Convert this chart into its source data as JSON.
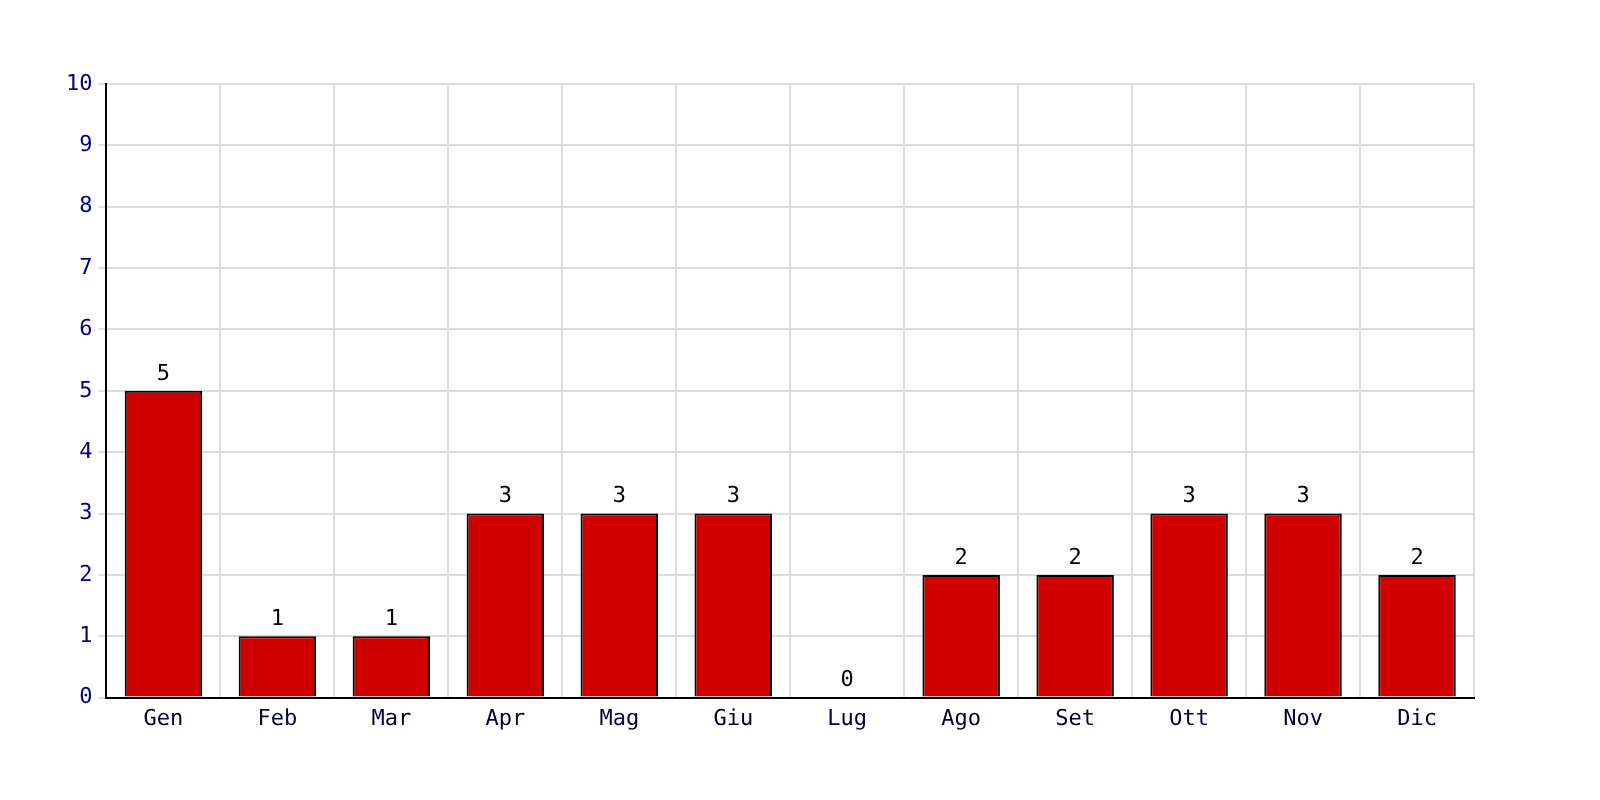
{
  "chart_data": {
    "type": "bar",
    "categories": [
      "Gen",
      "Feb",
      "Mar",
      "Apr",
      "Mag",
      "Giu",
      "Lug",
      "Ago",
      "Set",
      "Ott",
      "Nov",
      "Dic"
    ],
    "values": [
      5,
      1,
      1,
      3,
      3,
      3,
      0,
      2,
      2,
      3,
      3,
      2
    ],
    "color": "#d00000",
    "ylim": [
      0,
      10
    ],
    "yticks": [
      0,
      1,
      2,
      3,
      4,
      5,
      6,
      7,
      8,
      9,
      10
    ],
    "grid": true,
    "legend": false,
    "data_labels": true
  }
}
